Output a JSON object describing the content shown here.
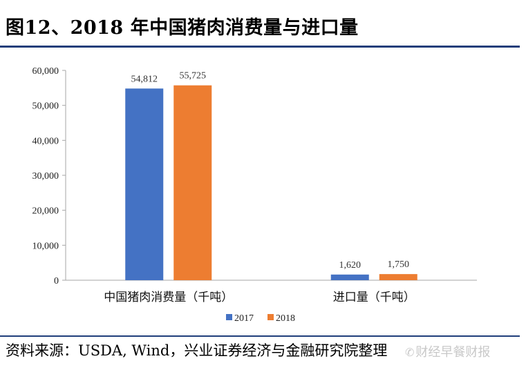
{
  "title": "图12、2018 年中国猪肉消费量与进口量",
  "source": "资料来源：USDA, Wind，兴业证券经济与金融研究院整理",
  "watermark": "财经早餐财报",
  "colors": {
    "series_2017": "#4472c4",
    "series_2018": "#ed7d31",
    "rule": "#1f3d7a"
  },
  "chart_data": {
    "type": "bar",
    "categories": [
      "中国猪肉消费量（千吨）",
      "进口量（千吨）"
    ],
    "series": [
      {
        "name": "2017",
        "values": [
          54812,
          1620
        ],
        "labels": [
          "54,812",
          "1,620"
        ]
      },
      {
        "name": "2018",
        "values": [
          55725,
          1750
        ],
        "labels": [
          "55,725",
          "1,750"
        ]
      }
    ],
    "ylim": [
      0,
      60000
    ],
    "yticks": [
      0,
      10000,
      20000,
      30000,
      40000,
      50000,
      60000
    ],
    "ytick_labels": [
      "0",
      "10,000",
      "20,000",
      "30,000",
      "40,000",
      "50,000",
      "60,000"
    ],
    "grid": false,
    "legend": "bottom"
  }
}
